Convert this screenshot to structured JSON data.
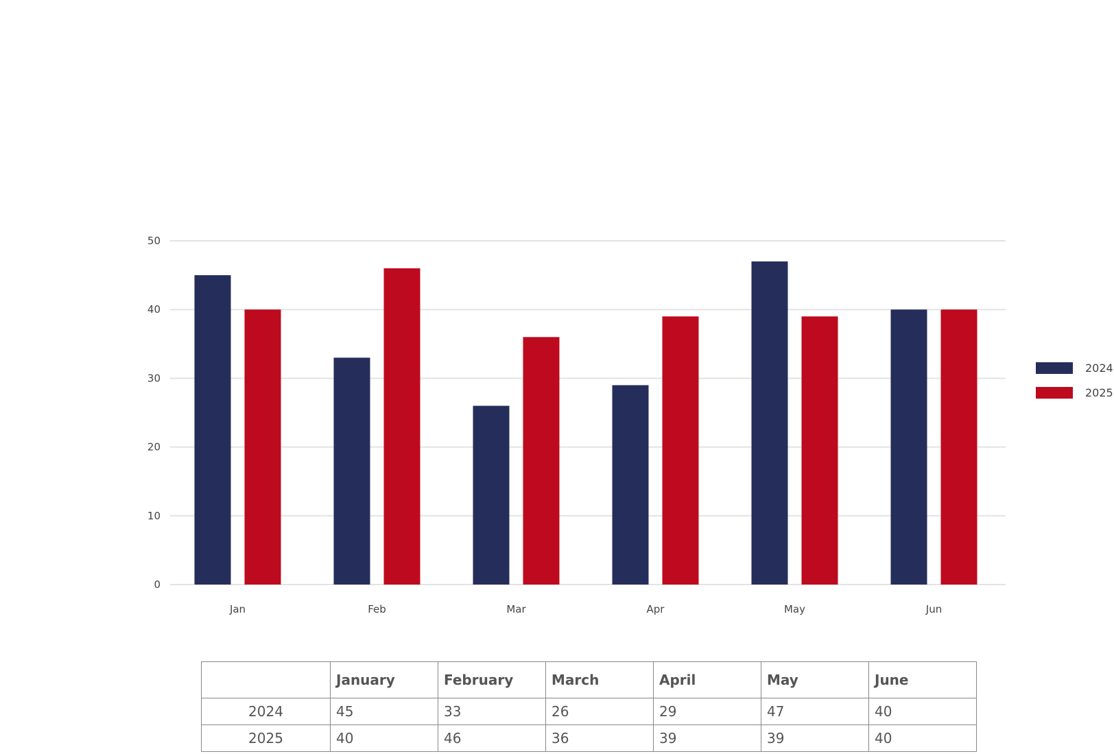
{
  "chart_data": {
    "type": "bar",
    "categories": [
      "Jan",
      "Feb",
      "Mar",
      "Apr",
      "May",
      "Jun"
    ],
    "series": [
      {
        "name": "2024",
        "color": "#252d5b",
        "values": [
          45,
          33,
          26,
          29,
          47,
          40
        ]
      },
      {
        "name": "2025",
        "color": "#be0a1e",
        "values": [
          40,
          46,
          36,
          39,
          39,
          40
        ]
      }
    ],
    "yticks": [
      "0",
      "10",
      "20",
      "30",
      "40",
      "50"
    ],
    "ylim": [
      0,
      50
    ],
    "grid": true,
    "legend_position": "right"
  },
  "table": {
    "corner": "",
    "headers": [
      "January",
      "February",
      "March",
      "April",
      "May",
      "June"
    ],
    "rows": [
      {
        "label": "2024",
        "values": [
          "45",
          "33",
          "26",
          "29",
          "47",
          "40"
        ]
      },
      {
        "label": "2025",
        "values": [
          "40",
          "46",
          "36",
          "39",
          "39",
          "40"
        ]
      }
    ]
  }
}
